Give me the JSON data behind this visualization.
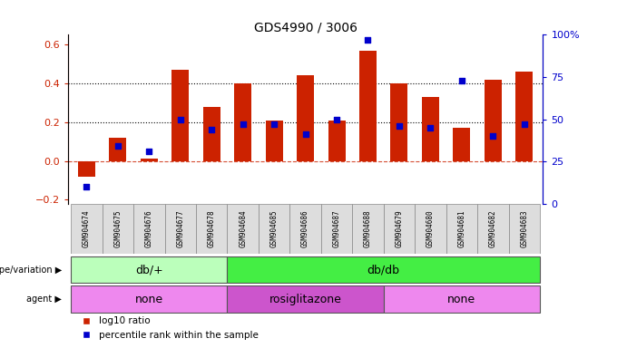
{
  "title": "GDS4990 / 3006",
  "samples": [
    "GSM904674",
    "GSM904675",
    "GSM904676",
    "GSM904677",
    "GSM904678",
    "GSM904684",
    "GSM904685",
    "GSM904686",
    "GSM904687",
    "GSM904688",
    "GSM904679",
    "GSM904680",
    "GSM904681",
    "GSM904682",
    "GSM904683"
  ],
  "log10_ratio": [
    -0.08,
    0.12,
    0.01,
    0.47,
    0.28,
    0.4,
    0.21,
    0.44,
    0.21,
    0.57,
    0.4,
    0.33,
    0.17,
    0.42,
    0.46
  ],
  "percentile": [
    10,
    34,
    31,
    50,
    44,
    47,
    47,
    41,
    50,
    97,
    46,
    45,
    73,
    40,
    47
  ],
  "bar_color": "#cc2200",
  "dot_color": "#0000cc",
  "bg_color": "#ffffff",
  "genotype_groups": [
    {
      "label": "db/+",
      "start": 0,
      "end": 5,
      "color": "#bbffbb"
    },
    {
      "label": "db/db",
      "start": 5,
      "end": 15,
      "color": "#44ee44"
    }
  ],
  "agent_groups": [
    {
      "label": "none",
      "start": 0,
      "end": 5,
      "color": "#ee88ee"
    },
    {
      "label": "rosiglitazone",
      "start": 5,
      "end": 10,
      "color": "#cc55cc"
    },
    {
      "label": "none",
      "start": 10,
      "end": 15,
      "color": "#ee88ee"
    }
  ],
  "ylim_left": [
    -0.22,
    0.65
  ],
  "ylim_right": [
    0,
    100
  ],
  "legend_bar": "log10 ratio",
  "legend_dot": "percentile rank within the sample",
  "genotype_label": "genotype/variation",
  "agent_label": "agent"
}
